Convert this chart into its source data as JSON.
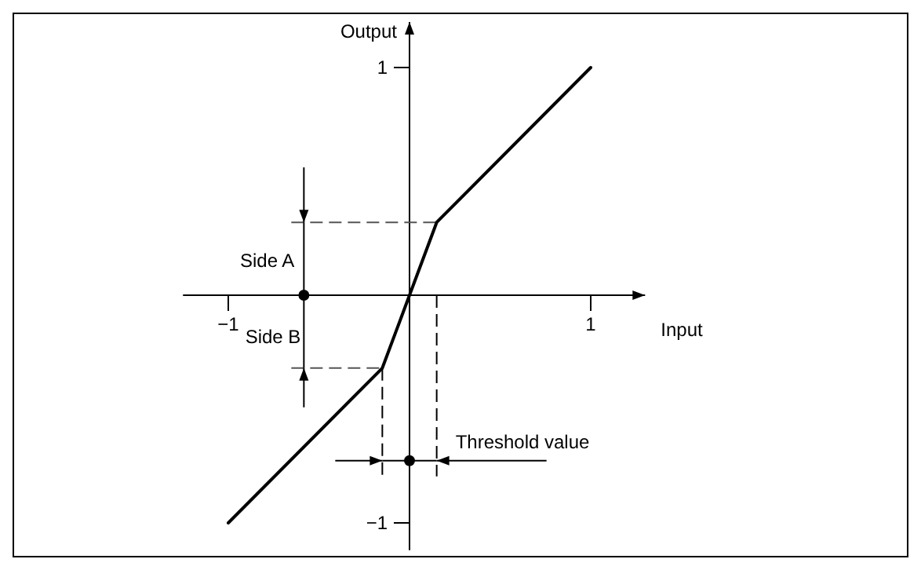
{
  "chart_data": {
    "type": "line",
    "xlabel": "Input",
    "ylabel": "Output",
    "x": [
      -1,
      -0.15,
      0.15,
      1
    ],
    "series": [
      {
        "color": "#000000",
        "values": [
          -1,
          -0.32,
          0.32,
          1
        ]
      }
    ],
    "xlim": [
      -1.25,
      1.3
    ],
    "ylim": [
      -1.12,
      1.2
    ],
    "xticks": [
      {
        "value": -1,
        "label": "−1"
      },
      1
    ],
    "yticks": [
      {
        "value": -1,
        "label": "−1"
      },
      1
    ],
    "marker": "none",
    "line_style": "solid",
    "annotations": [
      "Side A",
      {
        "text": "Side B",
        "x": -0.15,
        "y": -0.32
      },
      "Threshold value"
    ]
  }
}
